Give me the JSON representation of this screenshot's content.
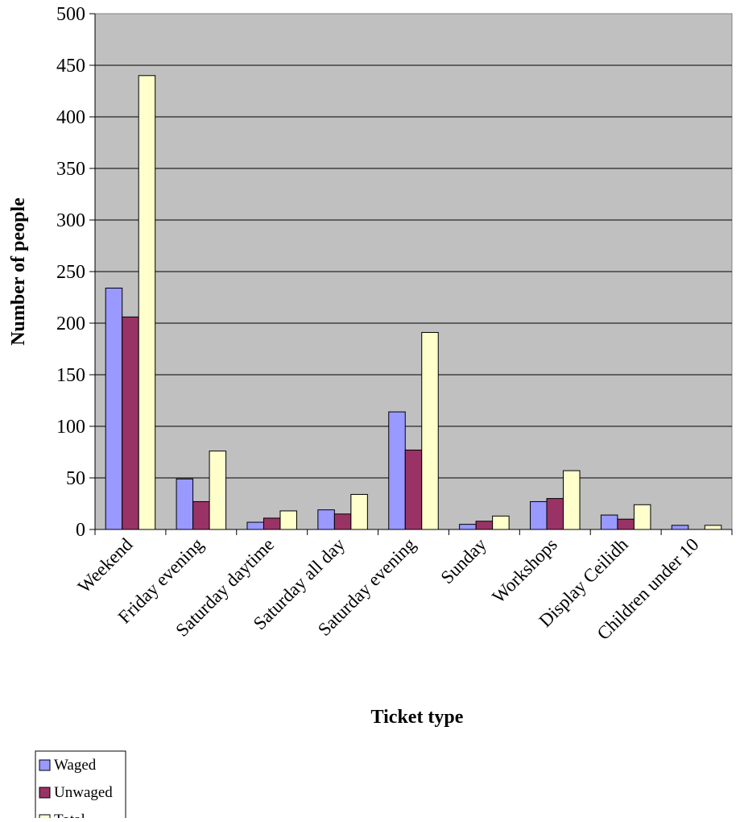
{
  "chart_data": {
    "type": "bar",
    "title": "",
    "xlabel": "Ticket type",
    "ylabel": "Number of people",
    "ylim": [
      0,
      500
    ],
    "yticks": [
      0,
      50,
      100,
      150,
      200,
      250,
      300,
      350,
      400,
      450,
      500
    ],
    "grid": true,
    "legend_position": "bottom-left",
    "categories": [
      "Weekend",
      "Friday evening",
      "Saturday daytime",
      "Saturday all day",
      "Saturday evening",
      "Sunday",
      "Workshops",
      "Display Ceilidh",
      "Children under 10"
    ],
    "series": [
      {
        "name": "Waged",
        "color": "#9999ff",
        "values": [
          234,
          49,
          7,
          19,
          114,
          5,
          27,
          14,
          4
        ]
      },
      {
        "name": "Unwaged",
        "color": "#993366",
        "values": [
          206,
          27,
          11,
          15,
          77,
          8,
          30,
          10,
          0
        ]
      },
      {
        "name": "Total",
        "color": "#ffffcc",
        "values": [
          440,
          76,
          18,
          34,
          191,
          13,
          57,
          24,
          4
        ]
      }
    ],
    "plot_background": "#c0c0c0"
  }
}
